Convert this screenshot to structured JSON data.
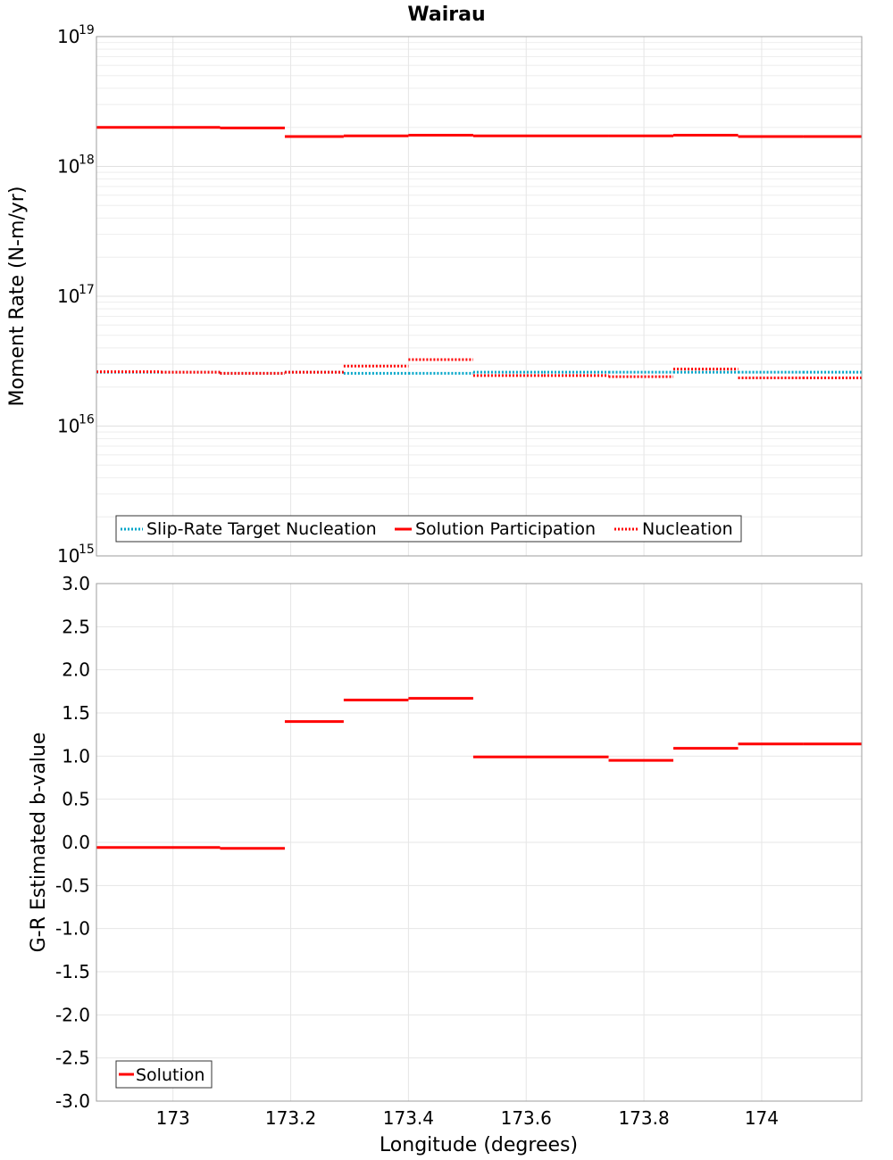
{
  "chart_data": [
    {
      "type": "line",
      "title": "Wairau",
      "ylabel": "Moment Rate (N-m/yr)",
      "xlabel": "",
      "xlim": [
        172.87,
        174.17
      ],
      "ylim": [
        1000000000000000.0,
        1e+19
      ],
      "yscale": "log",
      "ytick_base": "10",
      "ytick_exponents": [
        "19",
        "18",
        "17",
        "16",
        "15"
      ],
      "legend": [
        "Slip-Rate Target Nucleation",
        "Solution Participation",
        "Nucleation"
      ],
      "legend_placement": "bottom-left",
      "series": [
        {
          "name": "Slip-Rate Target Nucleation",
          "color": "#00a5c8",
          "style": "dotted",
          "segments": [
            [
              172.87,
              172.98,
              2.6e+16
            ],
            [
              172.98,
              173.08,
              2.6e+16
            ],
            [
              173.08,
              173.19,
              2.55e+16
            ],
            [
              173.19,
              173.29,
              2.6e+16
            ],
            [
              173.29,
              173.4,
              2.55e+16
            ],
            [
              173.4,
              173.51,
              2.55e+16
            ],
            [
              173.51,
              173.63,
              2.6e+16
            ],
            [
              173.63,
              173.74,
              2.6e+16
            ],
            [
              173.74,
              173.85,
              2.6e+16
            ],
            [
              173.85,
              173.96,
              2.6e+16
            ],
            [
              173.96,
              174.07,
              2.6e+16
            ],
            [
              174.07,
              174.17,
              2.6e+16
            ]
          ]
        },
        {
          "name": "Solution Participation",
          "color": "#ff0000",
          "style": "solid",
          "segments": [
            [
              172.87,
              172.98,
              2e+18
            ],
            [
              172.98,
              173.08,
              2e+18
            ],
            [
              173.08,
              173.19,
              1.98e+18
            ],
            [
              173.19,
              173.29,
              1.7e+18
            ],
            [
              173.29,
              173.4,
              1.72e+18
            ],
            [
              173.4,
              173.51,
              1.74e+18
            ],
            [
              173.51,
              173.63,
              1.72e+18
            ],
            [
              173.63,
              173.74,
              1.72e+18
            ],
            [
              173.74,
              173.85,
              1.72e+18
            ],
            [
              173.85,
              173.96,
              1.74e+18
            ],
            [
              173.96,
              174.07,
              1.7e+18
            ],
            [
              174.07,
              174.17,
              1.7e+18
            ]
          ]
        },
        {
          "name": "Nucleation",
          "color": "#ff0000",
          "style": "dotted",
          "segments": [
            [
              172.87,
              172.98,
              2.62e+16
            ],
            [
              172.98,
              173.08,
              2.6e+16
            ],
            [
              173.08,
              173.19,
              2.55e+16
            ],
            [
              173.19,
              173.29,
              2.6e+16
            ],
            [
              173.29,
              173.4,
              2.9e+16
            ],
            [
              173.4,
              173.51,
              3.25e+16
            ],
            [
              173.51,
              173.63,
              2.45e+16
            ],
            [
              173.63,
              173.74,
              2.45e+16
            ],
            [
              173.74,
              173.85,
              2.4e+16
            ],
            [
              173.85,
              173.96,
              2.75e+16
            ],
            [
              173.96,
              174.07,
              2.35e+16
            ],
            [
              174.07,
              174.17,
              2.35e+16
            ]
          ]
        }
      ]
    },
    {
      "type": "line",
      "title": "",
      "ylabel": "G-R Estimated b-value",
      "xlabel": "Longitude (degrees)",
      "xlim": [
        172.87,
        174.17
      ],
      "ylim": [
        -3.0,
        3.0
      ],
      "x_ticks": [
        "173",
        "173.2",
        "173.4",
        "173.6",
        "173.8",
        "174"
      ],
      "y_ticks": [
        "3.0",
        "2.5",
        "2.0",
        "1.5",
        "1.0",
        "0.5",
        "0.0",
        "-0.5",
        "-1.0",
        "-1.5",
        "-2.0",
        "-2.5",
        "-3.0"
      ],
      "legend": [
        "Solution"
      ],
      "legend_placement": "bottom-left",
      "series": [
        {
          "name": "Solution",
          "color": "#ff0000",
          "style": "solid",
          "segments": [
            [
              172.87,
              172.98,
              -0.06
            ],
            [
              172.98,
              173.08,
              -0.06
            ],
            [
              173.08,
              173.19,
              -0.07
            ],
            [
              173.19,
              173.29,
              1.4
            ],
            [
              173.29,
              173.4,
              1.65
            ],
            [
              173.4,
              173.51,
              1.67
            ],
            [
              173.51,
              173.63,
              0.99
            ],
            [
              173.63,
              173.74,
              0.99
            ],
            [
              173.74,
              173.85,
              0.95
            ],
            [
              173.85,
              173.96,
              1.09
            ],
            [
              173.96,
              174.07,
              1.14
            ],
            [
              174.07,
              174.17,
              1.14
            ]
          ]
        }
      ]
    }
  ]
}
